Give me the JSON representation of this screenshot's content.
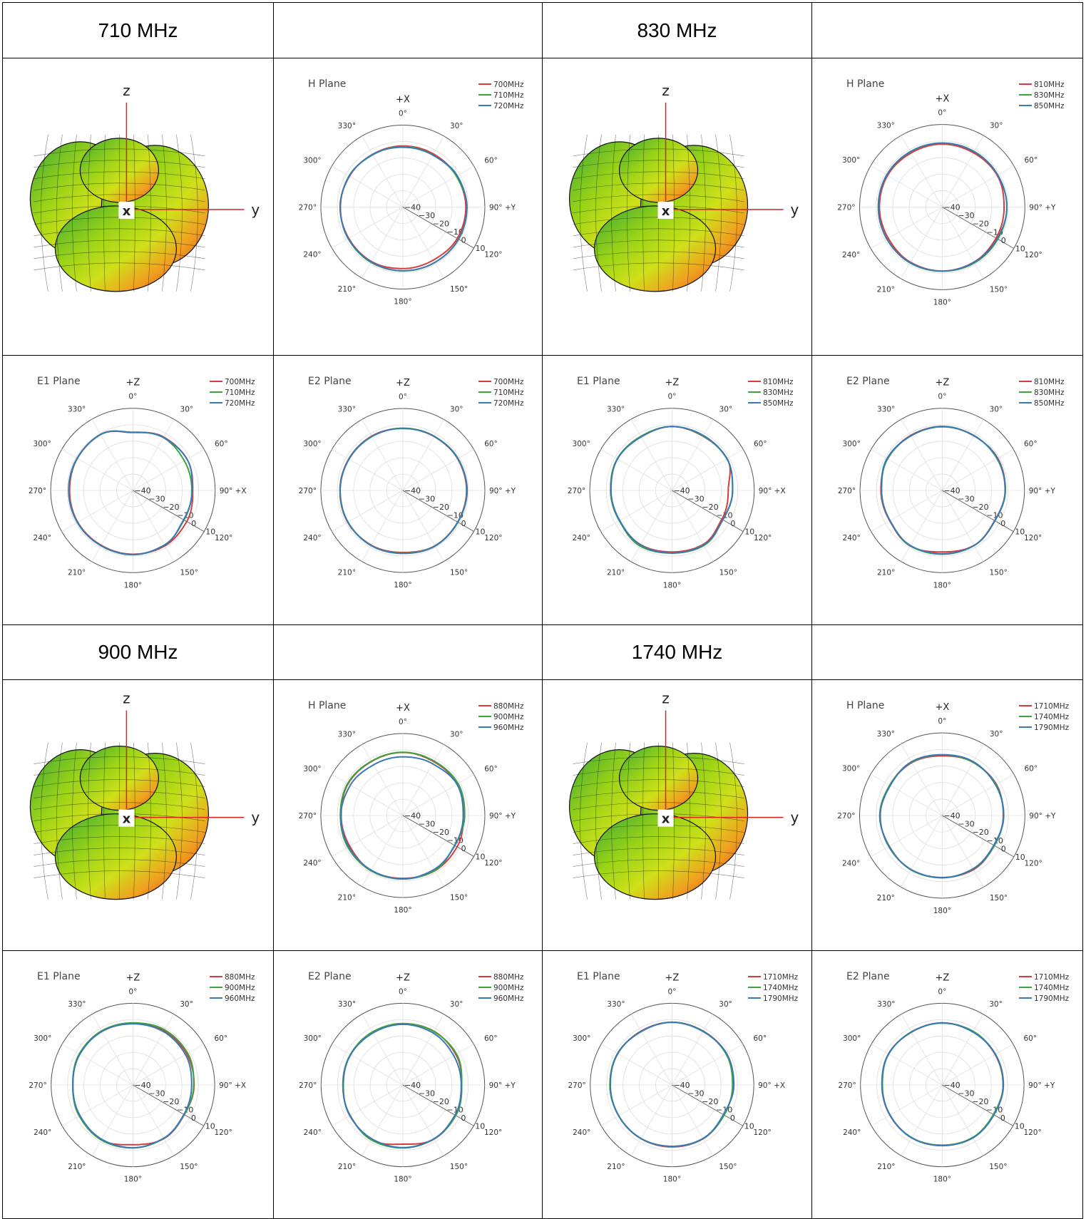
{
  "headers": [
    "710 MHz",
    "",
    "830 MHz",
    "",
    "900 MHz",
    "",
    "1740 MHz",
    ""
  ],
  "axis_rings": [
    "−40",
    "−30",
    "−20",
    "−10",
    "0",
    "10"
  ],
  "angle_labels": [
    "0°",
    "30°",
    "60°",
    "90°",
    "120°",
    "150°",
    "180°",
    "210°",
    "240°",
    "270°",
    "300°",
    "330°"
  ],
  "colors": {
    "red": "#d93b3b",
    "green": "#3aa63a",
    "blue": "#3a78b8"
  },
  "chart_data": [
    {
      "type": "3d-pattern",
      "labels": [
        "z",
        "y",
        "x"
      ]
    },
    {
      "type": "polar",
      "title": "H Plane",
      "top_axis": "+X",
      "right_axis": "+Y",
      "r_range": [
        -40,
        10
      ],
      "series": [
        {
          "name": "700MHz",
          "color": "red",
          "r": [
            -2.7,
            -2.6,
            -2.2,
            -1.6,
            -1.7,
            -2.7,
            -2.5,
            -1.7,
            -1.9,
            -1.7,
            -2.4,
            -2.9
          ]
        },
        {
          "name": "710MHz",
          "color": "green",
          "r": [
            -3.1,
            -3.3,
            -2.3,
            -0.9,
            -0.8,
            -1.0,
            -1.1,
            -1.1,
            -1.5,
            -1.9,
            -2.1,
            -3.2
          ]
        },
        {
          "name": "720MHz",
          "color": "blue",
          "r": [
            -3.5,
            -3.4,
            -1.7,
            -1.0,
            -0.8,
            -1.0,
            -1.1,
            -1.4,
            -1.6,
            -1.9,
            -2.2,
            -3.0
          ]
        }
      ]
    },
    {
      "type": "3d-pattern",
      "labels": [
        "z",
        "y",
        "x"
      ]
    },
    {
      "type": "polar",
      "title": "H Plane",
      "top_axis": "+X",
      "right_axis": "+Y",
      "r_range": [
        -40,
        10
      ],
      "series": [
        {
          "name": "810MHz",
          "color": "red",
          "r": [
            -1.9,
            -2.1,
            -1.6,
            -2.6,
            -2.4,
            -1.6,
            -1.3,
            -1.5,
            -2.3,
            -2.0,
            -1.8,
            -2.2
          ]
        },
        {
          "name": "830MHz",
          "color": "green",
          "r": [
            -1.3,
            -1.2,
            -1.2,
            -0.9,
            -1.2,
            -1.0,
            -1.2,
            -1.0,
            -1.4,
            -1.3,
            -1.2,
            -1.4
          ]
        },
        {
          "name": "850MHz",
          "color": "blue",
          "r": [
            -1.2,
            -1.3,
            -1.2,
            -0.9,
            -1.6,
            -1.4,
            -1.3,
            -1.2,
            -1.3,
            -1.4,
            -1.2,
            -1.3
          ]
        }
      ]
    },
    {
      "type": "polar",
      "title": "E1 Plane",
      "top_axis": "+Z",
      "right_axis": "+X",
      "r_range": [
        -40,
        10
      ],
      "series": [
        {
          "name": "700MHz",
          "color": "red",
          "r": [
            -4.8,
            -2.5,
            -2.0,
            -3.6,
            -2.2,
            -1.1,
            -1.2,
            -1.5,
            -1.3,
            -1.5,
            -1.0,
            -0.7
          ]
        },
        {
          "name": "710MHz",
          "color": "green",
          "r": [
            -4.6,
            -2.9,
            -3.9,
            -4.2,
            -4.1,
            -1.7,
            -0.9,
            -1.2,
            -1.1,
            -1.0,
            -0.9,
            -0.6
          ]
        },
        {
          "name": "720MHz",
          "color": "blue",
          "r": [
            -4.6,
            -2.8,
            -2.0,
            -3.9,
            -4.4,
            -1.6,
            -1.0,
            -1.2,
            -1.0,
            -0.9,
            -0.8,
            -0.7
          ]
        }
      ]
    },
    {
      "type": "polar",
      "title": "E2 Plane",
      "top_axis": "+Z",
      "right_axis": "+Y",
      "r_range": [
        -40,
        10
      ],
      "series": [
        {
          "name": "700MHz",
          "color": "red",
          "r": [
            -2.1,
            -2.0,
            -1.4,
            -1.2,
            -1.4,
            -1.0,
            -2.2,
            -1.5,
            -1.2,
            -1.6,
            -1.8,
            -1.8
          ]
        },
        {
          "name": "710MHz",
          "color": "green",
          "r": [
            -2.0,
            -1.8,
            -1.1,
            -1.0,
            -1.2,
            -0.9,
            -1.8,
            -1.3,
            -1.3,
            -1.7,
            -2.0,
            -2.1
          ]
        },
        {
          "name": "720MHz",
          "color": "blue",
          "r": [
            -2.2,
            -1.9,
            -1.3,
            -0.8,
            -1.4,
            -0.8,
            -1.6,
            -1.2,
            -1.4,
            -1.8,
            -2.0,
            -2.0
          ]
        }
      ]
    },
    {
      "type": "polar",
      "title": "E1 Plane",
      "top_axis": "+Z",
      "right_axis": "+X",
      "r_range": [
        -40,
        10
      ],
      "series": [
        {
          "name": "810MHz",
          "color": "red",
          "r": [
            -1.1,
            -2.0,
            -1.3,
            -5.8,
            -5.0,
            -2.1,
            -2.6,
            -1.9,
            -3.1,
            -2.8,
            -1.7,
            -2.1
          ]
        },
        {
          "name": "830MHz",
          "color": "green",
          "r": [
            -1.1,
            -1.8,
            -1.5,
            -3.1,
            -4.3,
            -1.3,
            -1.9,
            -1.0,
            -3.0,
            -2.6,
            -1.5,
            -2.0
          ]
        },
        {
          "name": "850MHz",
          "color": "blue",
          "r": [
            -1.1,
            -1.5,
            -1.4,
            -3.2,
            -4.3,
            -1.7,
            -1.9,
            -1.7,
            -3.3,
            -2.9,
            -1.7,
            -2.4
          ]
        }
      ]
    },
    {
      "type": "polar",
      "title": "E2 Plane",
      "top_axis": "+Z",
      "right_axis": "+Y",
      "r_range": [
        -40,
        10
      ],
      "series": [
        {
          "name": "810MHz",
          "color": "red",
          "r": [
            -1.1,
            -1.6,
            -1.0,
            -1.6,
            -3.2,
            -1.4,
            -2.6,
            -1.0,
            -3.1,
            -2.7,
            -1.6,
            -1.4
          ]
        },
        {
          "name": "830MHz",
          "color": "green",
          "r": [
            -1.3,
            -1.4,
            -1.5,
            -1.6,
            -3.0,
            -1.3,
            -1.2,
            -1.1,
            -3.3,
            -3.1,
            -1.6,
            -1.7
          ]
        },
        {
          "name": "850MHz",
          "color": "blue",
          "r": [
            -1.0,
            -1.5,
            -1.2,
            -1.8,
            -3.1,
            -1.3,
            -1.5,
            -1.3,
            -3.3,
            -3.1,
            -1.2,
            -1.7
          ]
        }
      ]
    },
    {
      "type": "3d-pattern",
      "labels": [
        "z",
        "y",
        "x"
      ]
    },
    {
      "type": "polar",
      "title": "H Plane",
      "top_axis": "+X",
      "right_axis": "+Y",
      "r_range": [
        -40,
        10
      ],
      "series": [
        {
          "name": "880MHz",
          "color": "red",
          "r": [
            -1.5,
            -2.1,
            -1.5,
            -3.1,
            -1.8,
            -1.1,
            -1.7,
            -1.3,
            -2.6,
            -2.4,
            -1.4,
            -1.9
          ]
        },
        {
          "name": "900MHz",
          "color": "green",
          "r": [
            -1.4,
            -1.7,
            -1.1,
            -2.3,
            -3.6,
            -1.3,
            -1.3,
            -1.1,
            -1.3,
            -1.9,
            -1.1,
            -1.7
          ]
        },
        {
          "name": "960MHz",
          "color": "blue",
          "r": [
            -4.2,
            -3.6,
            -1.9,
            -3.2,
            -3.4,
            -2.0,
            -1.3,
            -1.5,
            -1.9,
            -2.2,
            -3.0,
            -4.3
          ]
        }
      ]
    },
    {
      "type": "3d-pattern",
      "labels": [
        "z",
        "y",
        "x"
      ]
    },
    {
      "type": "polar",
      "title": "H Plane",
      "top_axis": "+X",
      "right_axis": "+Y",
      "r_range": [
        -40,
        10
      ],
      "series": [
        {
          "name": "1710MHz",
          "color": "red",
          "r": [
            -3.9,
            -2.8,
            -2.2,
            -3.1,
            -3.6,
            -2.2,
            -2.5,
            -2.1,
            -3.0,
            -2.2,
            -3.3,
            -3.1
          ]
        },
        {
          "name": "1740MHz",
          "color": "green",
          "r": [
            -3.3,
            -2.8,
            -2.5,
            -2.9,
            -3.6,
            -2.7,
            -2.3,
            -2.1,
            -2.9,
            -2.2,
            -3.3,
            -2.8
          ]
        },
        {
          "name": "1790MHz",
          "color": "blue",
          "r": [
            -3.2,
            -2.4,
            -2.8,
            -2.8,
            -4.0,
            -2.8,
            -2.4,
            -2.3,
            -2.6,
            -2.5,
            -3.7,
            -2.5
          ]
        }
      ]
    },
    {
      "type": "polar",
      "title": "E1 Plane",
      "top_axis": "+Z",
      "right_axis": "+X",
      "r_range": [
        -40,
        10
      ],
      "series": [
        {
          "name": "880MHz",
          "color": "red",
          "r": [
            -2.2,
            -1.7,
            -2.0,
            -2.6,
            -3.7,
            -2.1,
            -3.5,
            -1.3,
            -2.2,
            -3.3,
            -2.2,
            -1.8
          ]
        },
        {
          "name": "900MHz",
          "color": "green",
          "r": [
            -2.0,
            -1.1,
            -1.3,
            -2.8,
            -3.8,
            -2.3,
            -1.5,
            -1.2,
            -2.1,
            -3.2,
            -2.1,
            -1.8
          ]
        },
        {
          "name": "960MHz",
          "color": "blue",
          "r": [
            -2.6,
            -2.4,
            -2.9,
            -4.1,
            -4.0,
            -2.4,
            -1.6,
            -1.7,
            -2.6,
            -3.3,
            -2.5,
            -2.2
          ]
        }
      ]
    },
    {
      "type": "polar",
      "title": "E2 Plane",
      "top_axis": "+Z",
      "right_axis": "+Y",
      "r_range": [
        -40,
        10
      ],
      "series": [
        {
          "name": "880MHz",
          "color": "red",
          "r": [
            -2.5,
            -2.0,
            -2.6,
            -4.0,
            -2.8,
            -1.8,
            -3.8,
            -1.3,
            -2.8,
            -3.3,
            -2.9,
            -3.0
          ]
        },
        {
          "name": "900MHz",
          "color": "green",
          "r": [
            -2.4,
            -2.2,
            -2.1,
            -4.0,
            -2.6,
            -1.9,
            -1.5,
            -1.3,
            -2.7,
            -3.4,
            -2.9,
            -2.6
          ]
        },
        {
          "name": "960MHz",
          "color": "blue",
          "r": [
            -2.9,
            -3.2,
            -4.1,
            -4.3,
            -3.2,
            -2.0,
            -1.7,
            -2.0,
            -2.5,
            -3.6,
            -3.1,
            -3.3
          ]
        }
      ]
    },
    {
      "type": "polar",
      "title": "E1 Plane",
      "top_axis": "+Z",
      "right_axis": "+X",
      "r_range": [
        -40,
        10
      ],
      "series": [
        {
          "name": "1710MHz",
          "color": "red",
          "r": [
            -1.6,
            -1.9,
            -1.6,
            -2.6,
            -3.5,
            -2.0,
            -2.1,
            -2.1,
            -2.3,
            -2.1,
            -1.7,
            -2.0
          ]
        },
        {
          "name": "1740MHz",
          "color": "green",
          "r": [
            -1.6,
            -2.0,
            -1.9,
            -3.0,
            -3.2,
            -2.1,
            -2.5,
            -2.1,
            -2.3,
            -2.0,
            -1.5,
            -2.3
          ]
        },
        {
          "name": "1790MHz",
          "color": "blue",
          "r": [
            -1.7,
            -2.2,
            -1.5,
            -2.2,
            -3.7,
            -2.2,
            -2.5,
            -2.2,
            -2.4,
            -2.3,
            -1.6,
            -2.2
          ]
        }
      ]
    },
    {
      "type": "polar",
      "title": "E2 Plane",
      "top_axis": "+Z",
      "right_axis": "+Y",
      "r_range": [
        -40,
        10
      ],
      "series": [
        {
          "name": "1710MHz",
          "color": "red",
          "r": [
            -2.0,
            -2.3,
            -2.7,
            -2.8,
            -3.6,
            -2.7,
            -2.9,
            -2.7,
            -3.0,
            -3.2,
            -2.1,
            -2.6
          ]
        },
        {
          "name": "1740MHz",
          "color": "green",
          "r": [
            -2.2,
            -2.1,
            -2.5,
            -2.8,
            -3.9,
            -2.9,
            -3.2,
            -2.8,
            -3.1,
            -3.4,
            -2.2,
            -2.4
          ]
        },
        {
          "name": "1790MHz",
          "color": "blue",
          "r": [
            -2.0,
            -2.6,
            -2.4,
            -2.6,
            -3.5,
            -2.6,
            -3.0,
            -2.6,
            -3.2,
            -3.1,
            -2.0,
            -2.6
          ]
        }
      ]
    }
  ]
}
